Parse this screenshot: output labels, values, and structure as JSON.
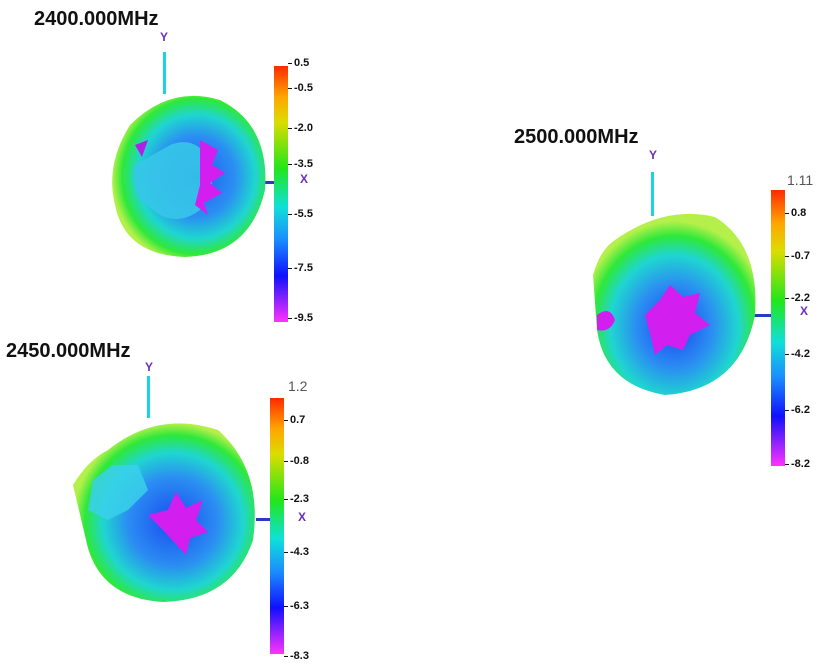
{
  "panels": [
    {
      "title": "2400.000MHz",
      "y_label": "Y",
      "x_label": "X",
      "ticks": [
        "0.5",
        "-0.5",
        "-2.0",
        "-3.5",
        "-5.5",
        "-7.5",
        "-9.5"
      ]
    },
    {
      "title": "2450.000MHz",
      "y_label": "Y",
      "x_label": "X",
      "ticks": [
        "1.2",
        "0.7",
        "-0.8",
        "-2.3",
        "-4.3",
        "-6.3",
        "-8.3"
      ]
    },
    {
      "title": "2500.000MHz",
      "y_label": "Y",
      "x_label": "X",
      "ticks": [
        "1.11",
        "0.8",
        "-0.7",
        "-2.2",
        "-4.2",
        "-6.2",
        "-8.2"
      ]
    }
  ],
  "colors": {
    "outer_rim": "#2ee83a",
    "mid_ring": "#1fd6d0",
    "inner_body": "#2a7cf0",
    "null_region": "#d21ff0",
    "y_axis": "#1ad5de",
    "x_axis": "#2a3ac8",
    "axis_label": "#6a2fbf"
  }
}
